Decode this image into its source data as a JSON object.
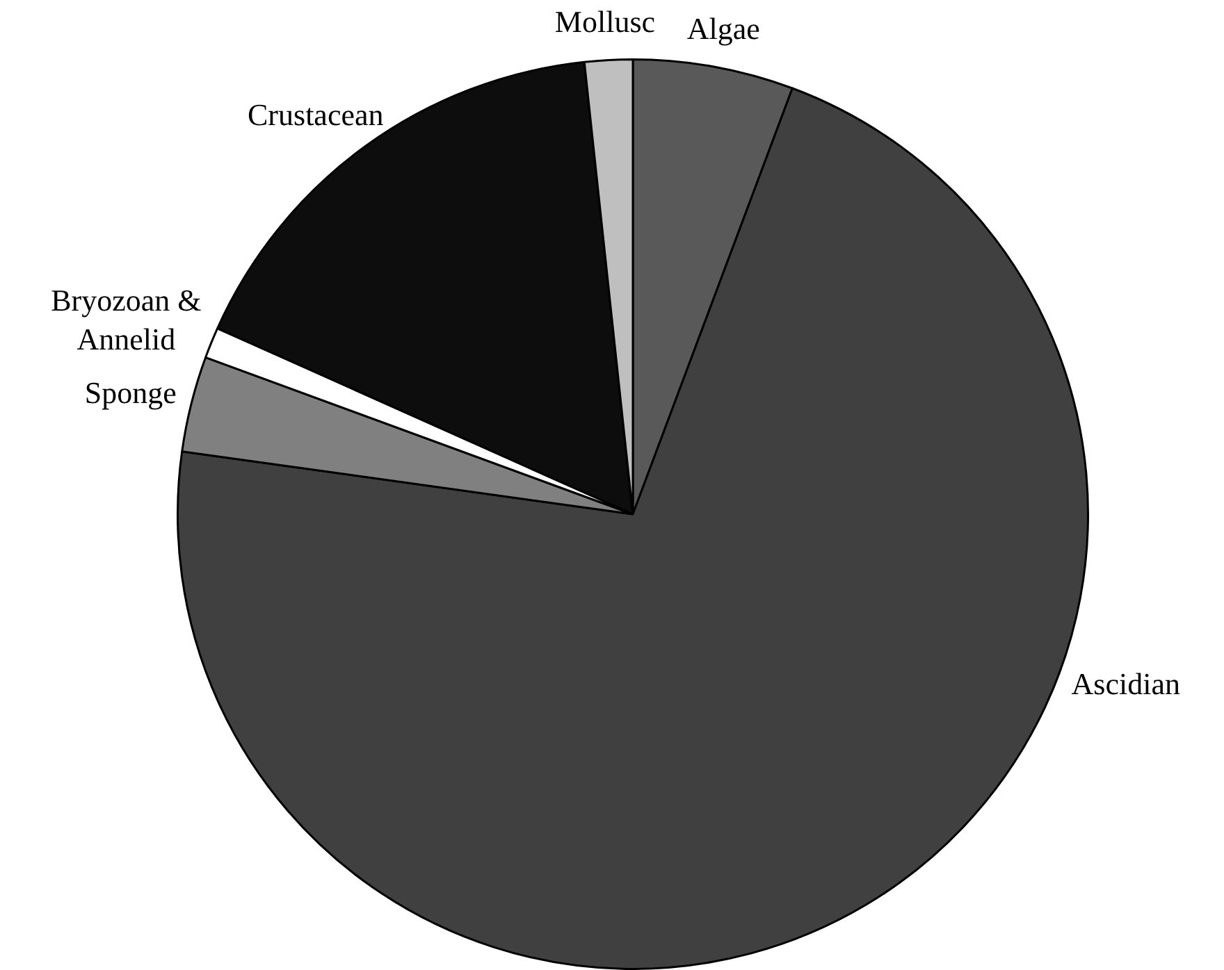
{
  "chart_data": {
    "type": "pie",
    "categories": [
      "Algae",
      "Ascidian",
      "Sponge",
      "Bryozoan & Annelid",
      "Crustacean",
      "Mollusc"
    ],
    "values": [
      5.7,
      71.5,
      3.4,
      1.1,
      16.6,
      1.7
    ],
    "colors": [
      "#595959",
      "#404040",
      "#808080",
      "#ffffff",
      "#0d0d0d",
      "#bfbfbf"
    ],
    "legend": false
  }
}
